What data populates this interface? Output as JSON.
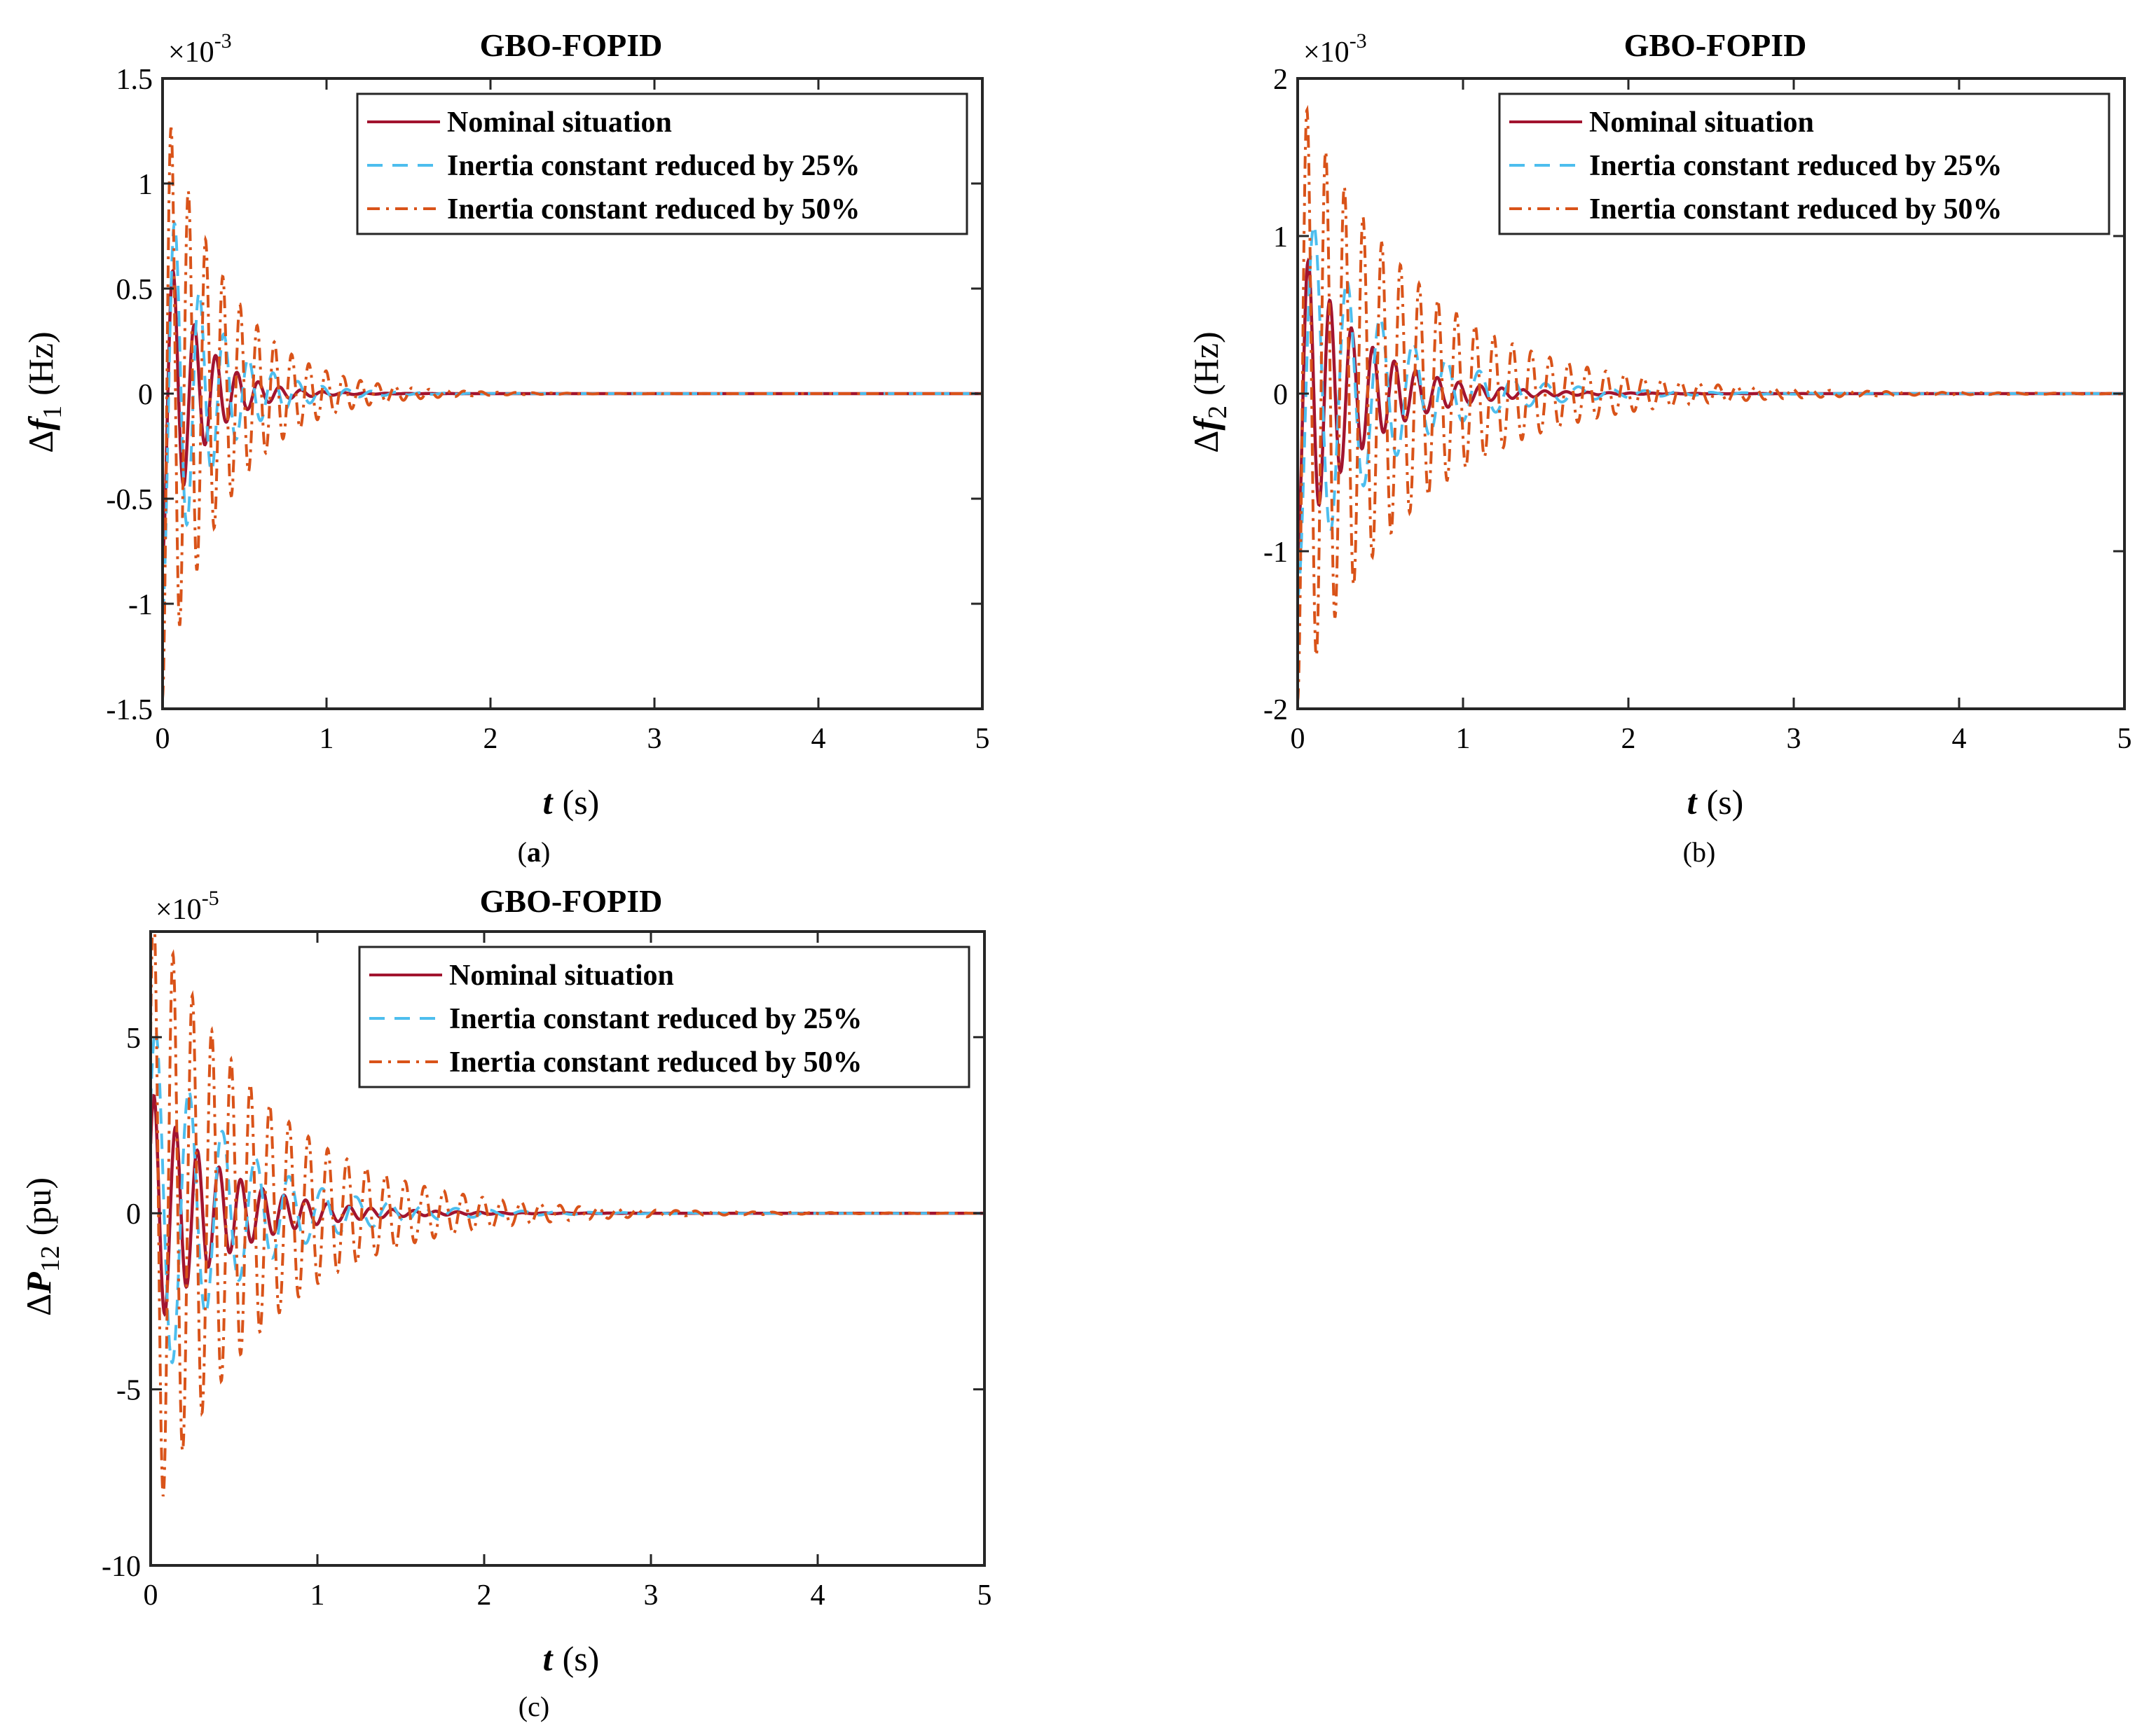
{
  "figure": {
    "colors": {
      "nominal": "#A2142F",
      "inertia_25": "#4DBEEE",
      "inertia_50": "#D95319",
      "axes": "#262626"
    }
  },
  "chart_data": [
    {
      "id": "a",
      "type": "line",
      "caption_letter": "a",
      "title": "GBO-FOPID",
      "exponent_label": "×10",
      "exponent_power": "-3",
      "ylabel": {
        "delta": "Δ",
        "symbol": "f",
        "subscript": "1",
        "unit": "(Hz)"
      },
      "xlabel": {
        "symbol": "t",
        "unit": "(s)"
      },
      "xlim": [
        0,
        5
      ],
      "ylim": [
        -1.5,
        1.5
      ],
      "xticks": [
        "0",
        "1",
        "2",
        "3",
        "4",
        "5"
      ],
      "xtick_values": [
        0,
        1,
        2,
        3,
        4,
        5
      ],
      "yticks": [
        "-1.5",
        "-1",
        "-0.5",
        "0",
        "0.5",
        "1",
        "1.5"
      ],
      "ytick_values": [
        -1.5,
        -1,
        -0.5,
        0,
        0.5,
        1,
        1.5
      ],
      "legend_position": "top-right",
      "series": [
        {
          "name": "Nominal situation",
          "style": "solid",
          "colorKey": "nominal",
          "params": {
            "amp": -0.78,
            "period": 0.13,
            "decay": 4.5,
            "phase": -1.5708
          }
        },
        {
          "name": "Inertia constant reduced by 25%",
          "style": "dashed",
          "colorKey": "inertia_25",
          "params": {
            "amp": -1.05,
            "period": 0.15,
            "decay": 3.5,
            "phase": -1.5708
          }
        },
        {
          "name": "Inertia constant reduced by 50%",
          "style": "dashdot",
          "colorKey": "inertia_50",
          "params": {
            "amp": -1.45,
            "period": 0.105,
            "decay": 2.6,
            "phase": -1.5708
          }
        }
      ]
    },
    {
      "id": "b",
      "type": "line",
      "caption_letter": "b",
      "title": "GBO-FOPID",
      "exponent_label": "×10",
      "exponent_power": "-3",
      "ylabel": {
        "delta": "Δ",
        "symbol": "f",
        "subscript": "2",
        "unit": "(Hz)"
      },
      "xlabel": {
        "symbol": "t",
        "unit": "(s)"
      },
      "xlim": [
        0,
        5
      ],
      "ylim": [
        -2,
        2
      ],
      "xticks": [
        "0",
        "1",
        "2",
        "3",
        "4",
        "5"
      ],
      "xtick_values": [
        0,
        1,
        2,
        3,
        4,
        5
      ],
      "yticks": [
        "-2",
        "-1",
        "0",
        "1",
        "2"
      ],
      "ytick_values": [
        -2,
        -1,
        0,
        1,
        2
      ],
      "legend_position": "top-right",
      "series": [
        {
          "name": "Nominal situation",
          "style": "solid",
          "colorKey": "nominal",
          "params": {
            "amp": -1.0,
            "period": 0.13,
            "decay": 2.7,
            "phase": -1.5708
          }
        },
        {
          "name": "Inertia constant reduced by 25%",
          "style": "dashed",
          "colorKey": "inertia_25",
          "params": {
            "amp": -1.3,
            "period": 0.2,
            "decay": 2.0,
            "phase": -1.5708
          }
        },
        {
          "name": "Inertia constant reduced by 50%",
          "style": "dashdot",
          "colorKey": "inertia_50",
          "params": {
            "amp": -1.95,
            "period": 0.113,
            "decay": 1.4,
            "phase": -1.5708
          }
        }
      ]
    },
    {
      "id": "c",
      "type": "line",
      "caption_letter": "c",
      "title": "GBO-FOPID",
      "exponent_label": "×10",
      "exponent_power": "-5",
      "ylabel": {
        "delta": "Δ",
        "symbol": "P",
        "subscript": "12",
        "unit": "(pu)"
      },
      "xlabel": {
        "symbol": "t",
        "unit": "(s)"
      },
      "xlim": [
        0,
        5
      ],
      "ylim": [
        -10,
        8
      ],
      "xticks": [
        "0",
        "1",
        "2",
        "3",
        "4",
        "5"
      ],
      "xtick_values": [
        0,
        1,
        2,
        3,
        4,
        5
      ],
      "yticks": [
        "-10",
        "-5",
        "0",
        "5"
      ],
      "ytick_values": [
        -10,
        -5,
        0,
        5
      ],
      "legend_position": "top-right",
      "series": [
        {
          "name": "Nominal situation",
          "style": "solid",
          "colorKey": "nominal",
          "params": {
            "amp": 3.5,
            "period": 0.13,
            "decay": 2.4,
            "phase": -0.6
          }
        },
        {
          "name": "Inertia constant reduced by 25%",
          "style": "dashed",
          "colorKey": "inertia_25",
          "params": {
            "amp": 5.5,
            "period": 0.2,
            "decay": 2.0,
            "phase": -0.6
          }
        },
        {
          "name": "Inertia constant reduced by 50%",
          "style": "dashdot",
          "colorKey": "inertia_50",
          "params": {
            "amp": 9.0,
            "period": 0.116,
            "decay": 1.5,
            "phase": -0.6
          }
        }
      ]
    }
  ]
}
